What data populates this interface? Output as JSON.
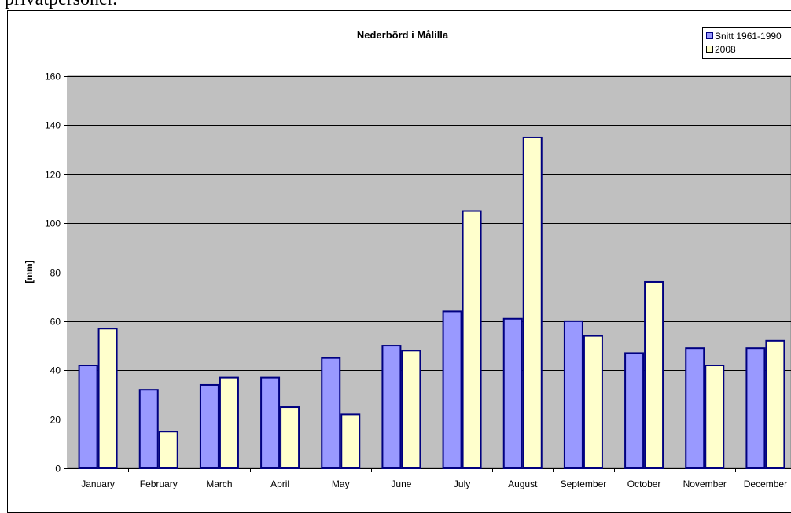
{
  "document": {
    "text_above_chart": "privatpersoner."
  },
  "chart_data": {
    "type": "bar",
    "title": "Nederbörd i Målilla",
    "xlabel": "",
    "ylabel": "[mm]",
    "ylim": [
      0,
      160
    ],
    "yticks": [
      "0",
      "20",
      "40",
      "60",
      "80",
      "100",
      "120",
      "140",
      "160"
    ],
    "grid": true,
    "legend_position": "top-right",
    "plot_background": "#c0c0c0",
    "categories": [
      "January",
      "February",
      "March",
      "April",
      "May",
      "June",
      "July",
      "August",
      "September",
      "October",
      "November",
      "December"
    ],
    "series": [
      {
        "name": "Snitt 1961-1990",
        "color": "#9999ff",
        "values": [
          42,
          32,
          34,
          37,
          45,
          50,
          64,
          61,
          60,
          47,
          49,
          49
        ]
      },
      {
        "name": "2008",
        "color": "#ffffcc",
        "values": [
          57,
          15,
          37,
          25,
          22,
          48,
          105,
          135,
          54,
          76,
          42,
          52
        ]
      }
    ]
  }
}
